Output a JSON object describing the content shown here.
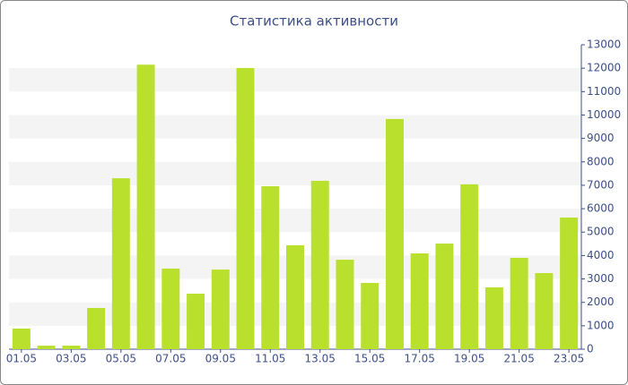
{
  "chart_data": {
    "type": "bar",
    "title": "Статистика активности",
    "categories": [
      "01.05",
      null,
      "03.05",
      null,
      "05.05",
      null,
      "07.05",
      null,
      "09.05",
      null,
      "11.05",
      null,
      "13.05",
      null,
      "15.05",
      null,
      "17.05",
      null,
      "19.05",
      null,
      "21.05",
      null,
      "23.05"
    ],
    "values": [
      880,
      150,
      150,
      1760,
      7300,
      12150,
      3440,
      2370,
      3400,
      12010,
      6960,
      4440,
      7190,
      3820,
      2830,
      9830,
      4090,
      4510,
      7040,
      2640,
      3900,
      3250,
      5620
    ],
    "color": "#b8e02c",
    "ylim": [
      0,
      13000
    ],
    "yticks": [
      0,
      1000,
      2000,
      3000,
      4000,
      5000,
      6000,
      7000,
      8000,
      9000,
      10000,
      11000,
      12000,
      13000
    ],
    "grid": true
  }
}
